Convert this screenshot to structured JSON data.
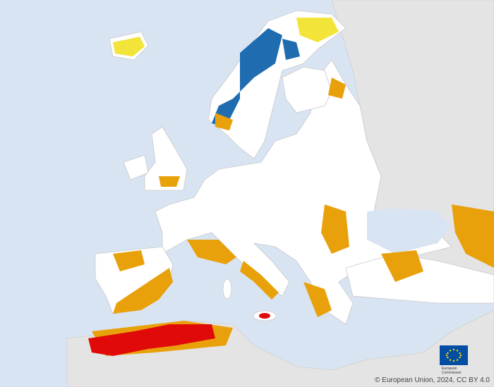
{
  "credit": "© European Union, 2024, CC BY 4.0",
  "logo": {
    "line1": "European",
    "line2": "Commission"
  }
}
